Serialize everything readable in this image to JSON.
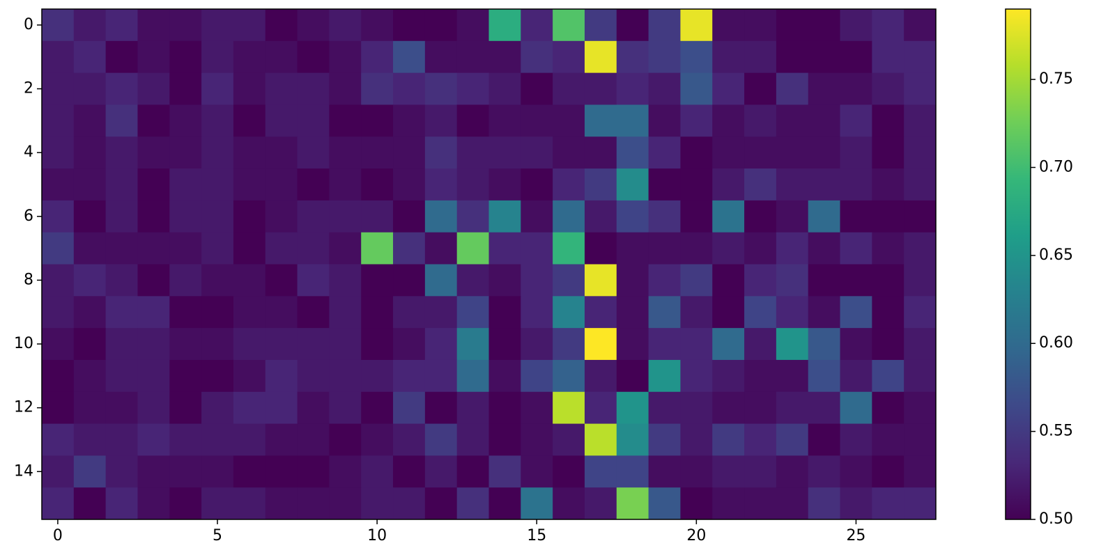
{
  "chart_data": {
    "type": "heatmap",
    "colormap": "viridis",
    "values": [
      [
        0.54,
        0.52,
        0.53,
        0.51,
        0.51,
        0.52,
        0.52,
        0.5,
        0.51,
        0.52,
        0.51,
        0.5,
        0.5,
        0.51,
        0.68,
        0.53,
        0.71,
        0.55,
        0.5,
        0.55,
        0.78,
        0.51,
        0.51,
        0.5,
        0.5,
        0.52,
        0.53,
        0.51
      ],
      [
        0.52,
        0.53,
        0.5,
        0.51,
        0.5,
        0.52,
        0.51,
        0.51,
        0.5,
        0.51,
        0.53,
        0.57,
        0.51,
        0.51,
        0.51,
        0.54,
        0.53,
        0.78,
        0.54,
        0.55,
        0.57,
        0.52,
        0.52,
        0.5,
        0.5,
        0.5,
        0.53,
        0.53
      ],
      [
        0.52,
        0.52,
        0.53,
        0.52,
        0.5,
        0.53,
        0.51,
        0.52,
        0.52,
        0.51,
        0.54,
        0.53,
        0.54,
        0.53,
        0.52,
        0.5,
        0.52,
        0.52,
        0.53,
        0.52,
        0.58,
        0.53,
        0.5,
        0.54,
        0.51,
        0.51,
        0.52,
        0.53
      ],
      [
        0.52,
        0.51,
        0.54,
        0.5,
        0.51,
        0.52,
        0.5,
        0.52,
        0.52,
        0.5,
        0.5,
        0.51,
        0.52,
        0.5,
        0.51,
        0.51,
        0.51,
        0.6,
        0.6,
        0.51,
        0.53,
        0.51,
        0.52,
        0.51,
        0.51,
        0.53,
        0.5,
        0.52
      ],
      [
        0.52,
        0.51,
        0.52,
        0.51,
        0.51,
        0.52,
        0.51,
        0.51,
        0.52,
        0.51,
        0.51,
        0.51,
        0.54,
        0.52,
        0.52,
        0.52,
        0.51,
        0.51,
        0.57,
        0.53,
        0.5,
        0.51,
        0.51,
        0.51,
        0.51,
        0.52,
        0.5,
        0.52
      ],
      [
        0.51,
        0.51,
        0.52,
        0.5,
        0.52,
        0.52,
        0.51,
        0.51,
        0.5,
        0.51,
        0.5,
        0.51,
        0.53,
        0.52,
        0.51,
        0.5,
        0.53,
        0.55,
        0.64,
        0.5,
        0.5,
        0.52,
        0.54,
        0.52,
        0.52,
        0.52,
        0.51,
        0.52
      ],
      [
        0.53,
        0.5,
        0.52,
        0.5,
        0.52,
        0.52,
        0.5,
        0.51,
        0.52,
        0.52,
        0.52,
        0.5,
        0.6,
        0.54,
        0.63,
        0.51,
        0.6,
        0.52,
        0.56,
        0.54,
        0.5,
        0.61,
        0.5,
        0.51,
        0.6,
        0.5,
        0.5,
        0.5
      ],
      [
        0.55,
        0.51,
        0.51,
        0.51,
        0.51,
        0.52,
        0.5,
        0.52,
        0.52,
        0.51,
        0.72,
        0.54,
        0.51,
        0.72,
        0.53,
        0.53,
        0.69,
        0.5,
        0.51,
        0.51,
        0.51,
        0.52,
        0.51,
        0.53,
        0.51,
        0.53,
        0.51,
        0.52
      ],
      [
        0.52,
        0.53,
        0.52,
        0.5,
        0.52,
        0.51,
        0.51,
        0.5,
        0.53,
        0.52,
        0.5,
        0.5,
        0.6,
        0.52,
        0.51,
        0.53,
        0.55,
        0.78,
        0.51,
        0.53,
        0.55,
        0.5,
        0.53,
        0.54,
        0.5,
        0.5,
        0.5,
        0.52
      ],
      [
        0.52,
        0.51,
        0.53,
        0.53,
        0.5,
        0.5,
        0.51,
        0.51,
        0.5,
        0.52,
        0.5,
        0.52,
        0.52,
        0.56,
        0.5,
        0.53,
        0.63,
        0.53,
        0.51,
        0.58,
        0.52,
        0.5,
        0.56,
        0.53,
        0.51,
        0.57,
        0.5,
        0.53
      ],
      [
        0.51,
        0.5,
        0.52,
        0.52,
        0.51,
        0.51,
        0.52,
        0.52,
        0.52,
        0.52,
        0.5,
        0.51,
        0.53,
        0.62,
        0.5,
        0.52,
        0.55,
        0.79,
        0.51,
        0.53,
        0.53,
        0.6,
        0.52,
        0.65,
        0.58,
        0.51,
        0.5,
        0.52
      ],
      [
        0.5,
        0.51,
        0.52,
        0.52,
        0.5,
        0.5,
        0.51,
        0.53,
        0.52,
        0.52,
        0.52,
        0.53,
        0.53,
        0.6,
        0.51,
        0.56,
        0.59,
        0.52,
        0.5,
        0.65,
        0.53,
        0.52,
        0.51,
        0.51,
        0.57,
        0.52,
        0.56,
        0.52
      ],
      [
        0.5,
        0.51,
        0.51,
        0.52,
        0.5,
        0.52,
        0.53,
        0.53,
        0.51,
        0.52,
        0.5,
        0.55,
        0.5,
        0.52,
        0.5,
        0.51,
        0.76,
        0.53,
        0.65,
        0.52,
        0.52,
        0.51,
        0.51,
        0.52,
        0.52,
        0.6,
        0.5,
        0.51
      ],
      [
        0.53,
        0.52,
        0.52,
        0.53,
        0.52,
        0.52,
        0.52,
        0.51,
        0.51,
        0.5,
        0.51,
        0.52,
        0.55,
        0.52,
        0.5,
        0.51,
        0.52,
        0.76,
        0.64,
        0.55,
        0.52,
        0.55,
        0.53,
        0.55,
        0.5,
        0.52,
        0.51,
        0.51
      ],
      [
        0.52,
        0.55,
        0.52,
        0.51,
        0.51,
        0.51,
        0.5,
        0.5,
        0.5,
        0.51,
        0.52,
        0.5,
        0.52,
        0.5,
        0.54,
        0.51,
        0.5,
        0.56,
        0.56,
        0.51,
        0.51,
        0.52,
        0.52,
        0.51,
        0.52,
        0.51,
        0.5,
        0.51
      ],
      [
        0.53,
        0.5,
        0.53,
        0.51,
        0.5,
        0.52,
        0.52,
        0.51,
        0.51,
        0.51,
        0.52,
        0.52,
        0.5,
        0.54,
        0.5,
        0.61,
        0.51,
        0.52,
        0.73,
        0.58,
        0.5,
        0.51,
        0.51,
        0.51,
        0.54,
        0.52,
        0.53,
        0.53
      ]
    ],
    "xlim": [
      -0.5,
      27.5
    ],
    "xticks": [
      0,
      5,
      10,
      15,
      20,
      25
    ],
    "ylim": [
      15.5,
      -0.5
    ],
    "yticks": [
      0,
      2,
      4,
      6,
      8,
      10,
      12,
      14
    ],
    "vlim": [
      0.5,
      0.79
    ],
    "cticks": [
      {
        "value": 0.5,
        "label": "0.50"
      },
      0.55,
      {
        "value": 0.6,
        "label": "0.60"
      },
      0.65,
      {
        "value": 0.7,
        "label": "0.70"
      },
      0.75
    ]
  }
}
